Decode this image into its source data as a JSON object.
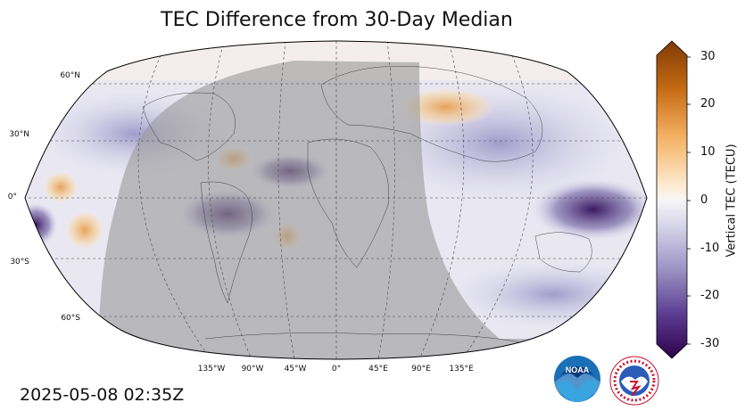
{
  "title": "TEC Difference from 30-Day Median",
  "timestamp": "2025-05-08 02:35Z",
  "latitude_labels": [
    "60°N",
    "30°N",
    "0°",
    "30°S",
    "60°S"
  ],
  "longitude_labels": [
    "135°W",
    "90°W",
    "45°W",
    "0°",
    "45°E",
    "90°E",
    "135°E"
  ],
  "colorbar": {
    "label": "Vertical TEC (TECU)",
    "ticks": [
      "30",
      "20",
      "10",
      "0",
      "-10",
      "-20",
      "-30"
    ],
    "min": -30,
    "max": 30,
    "colors": {
      "high": "#7f3b08",
      "mid": "#f7f7f7",
      "low": "#2d004b"
    }
  },
  "logos": {
    "noaa": "NOAA"
  },
  "colors": {
    "night_shade": "#9a9a9a",
    "ocean_neutral": "#eeeef2"
  }
}
